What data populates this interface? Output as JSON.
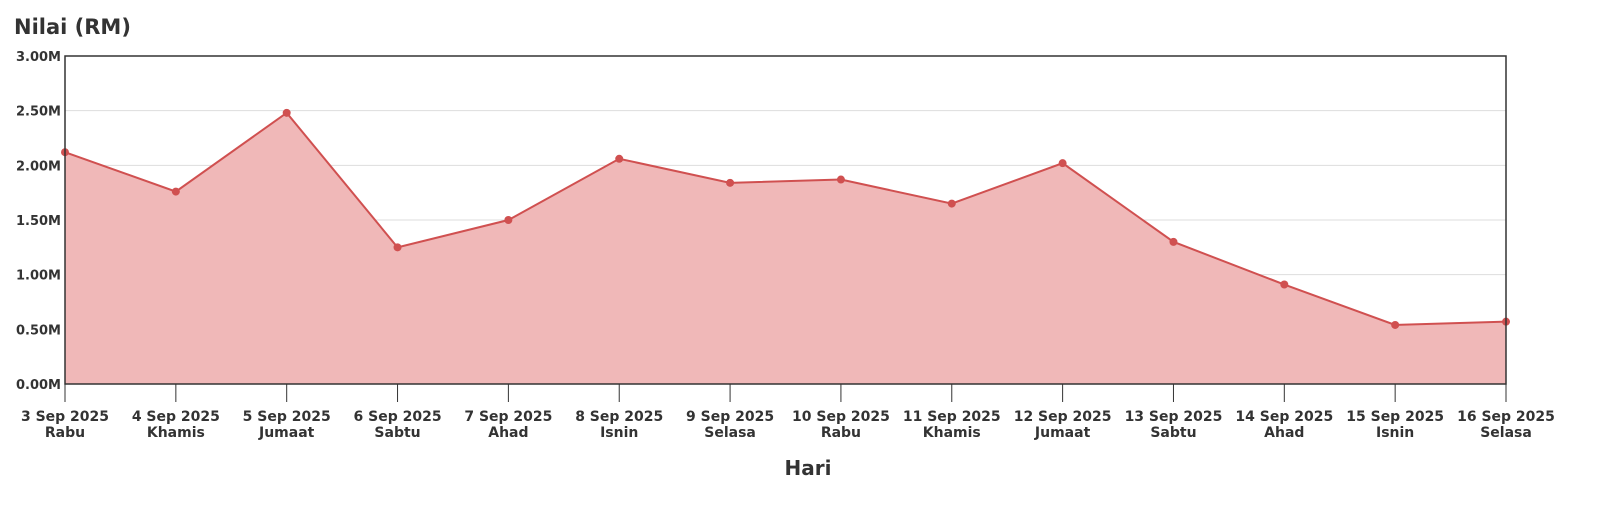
{
  "chart_data": {
    "type": "area",
    "title": "Nilai (RM)",
    "xlabel": "Hari",
    "ylabel": "",
    "ylim": [
      0,
      3000000
    ],
    "yticks": [
      0,
      500000,
      1000000,
      1500000,
      2000000,
      2500000,
      3000000
    ],
    "ytick_labels": [
      "0.00M",
      "0.50M",
      "1.00M",
      "1.50M",
      "2.00M",
      "2.50M",
      "3.00M"
    ],
    "categories": [
      {
        "date": "3 Sep 2025",
        "day": "Rabu"
      },
      {
        "date": "4 Sep 2025",
        "day": "Khamis"
      },
      {
        "date": "5 Sep 2025",
        "day": "Jumaat"
      },
      {
        "date": "6 Sep 2025",
        "day": "Sabtu"
      },
      {
        "date": "7 Sep 2025",
        "day": "Ahad"
      },
      {
        "date": "8 Sep 2025",
        "day": "Isnin"
      },
      {
        "date": "9 Sep 2025",
        "day": "Selasa"
      },
      {
        "date": "10 Sep 2025",
        "day": "Rabu"
      },
      {
        "date": "11 Sep 2025",
        "day": "Khamis"
      },
      {
        "date": "12 Sep 2025",
        "day": "Jumaat"
      },
      {
        "date": "13 Sep 2025",
        "day": "Sabtu"
      },
      {
        "date": "14 Sep 2025",
        "day": "Ahad"
      },
      {
        "date": "15 Sep 2025",
        "day": "Isnin"
      },
      {
        "date": "16 Sep 2025",
        "day": "Selasa"
      }
    ],
    "values": [
      2120000,
      1760000,
      2480000,
      1250000,
      1500000,
      2060000,
      1840000,
      1870000,
      1650000,
      2020000,
      1300000,
      910000,
      540000,
      570000
    ],
    "grid": true,
    "colors": {
      "line": "#d05050",
      "fill": "#f0b8b8",
      "grid": "#dddddd",
      "axis": "#333333"
    }
  }
}
